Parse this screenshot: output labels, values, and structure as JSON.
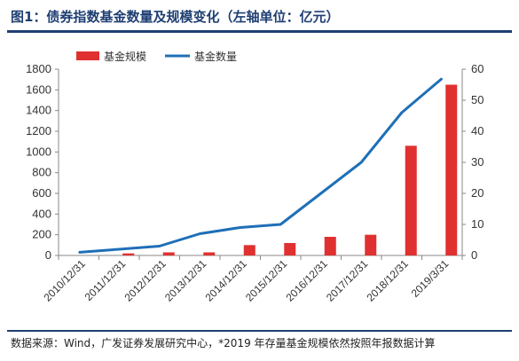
{
  "title": "图1：债券指数基金数量及规模变化（左轴单位：亿元）",
  "source": "数据来源：Wind，广发证券发展研究中心，*2019 年存量基金规模依然按照年报数据计算",
  "colors": {
    "bar": "#e03030",
    "line": "#1f6fb8",
    "accent": "#1f3f73"
  },
  "chart_data": {
    "type": "bar",
    "categories": [
      "2010/12/31",
      "2011/12/31",
      "2012/12/31",
      "2013/12/31",
      "2014/12/31",
      "2015/12/31",
      "2016/12/31",
      "2017/12/31",
      "2018/12/31",
      "2019/3/31"
    ],
    "series": [
      {
        "name": "基金规模",
        "type": "bar",
        "axis": "left",
        "values": [
          0,
          20,
          30,
          30,
          100,
          120,
          180,
          200,
          1060,
          1650
        ]
      },
      {
        "name": "基金数量",
        "type": "line",
        "axis": "right",
        "values": [
          1,
          2,
          3,
          7,
          9,
          10,
          20,
          30,
          46,
          57
        ]
      }
    ],
    "ylim_left": [
      0,
      1800
    ],
    "yticks_left": [
      0,
      200,
      400,
      600,
      800,
      1000,
      1200,
      1400,
      1600,
      1800
    ],
    "ylim_right": [
      0,
      60
    ],
    "yticks_right": [
      0,
      10,
      20,
      30,
      40,
      50,
      60
    ],
    "legend": "top-center",
    "grid": false
  }
}
